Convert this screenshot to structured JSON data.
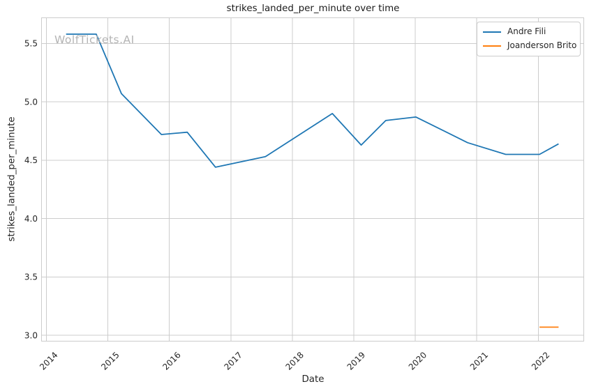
{
  "figure": {
    "watermark": "WolfTickets.AI"
  },
  "colors": {
    "grid": "#cccccc",
    "spine": "#cccccc",
    "text": "#262626",
    "watermark": "#b4b4b4",
    "background": "#ffffff"
  },
  "chart_data": {
    "type": "line",
    "title": "strikes_landed_per_minute over time",
    "xlabel": "Date",
    "ylabel": "strikes_landed_per_minute",
    "xlim": [
      2013.92,
      2022.74
    ],
    "ylim": [
      2.95,
      5.72
    ],
    "xticks": [
      2014,
      2015,
      2016,
      2017,
      2018,
      2019,
      2020,
      2021,
      2022
    ],
    "yticks": [
      3.0,
      3.5,
      4.0,
      4.5,
      5.0,
      5.5
    ],
    "grid": true,
    "legend_position": "upper right",
    "series": [
      {
        "name": "Andre Fili",
        "color": "#1f77b4",
        "x": [
          2014.32,
          2014.81,
          2015.22,
          2015.87,
          2016.29,
          2016.75,
          2017.56,
          2018.65,
          2019.12,
          2019.52,
          2020.01,
          2020.85,
          2021.47,
          2022.02,
          2022.33
        ],
        "y": [
          5.58,
          5.58,
          5.07,
          4.72,
          4.74,
          4.44,
          4.53,
          4.9,
          4.63,
          4.84,
          4.87,
          4.65,
          4.55,
          4.55,
          4.64
        ]
      },
      {
        "name": "Joanderson Brito",
        "color": "#ff7f0e",
        "x": [
          2022.02,
          2022.33
        ],
        "y": [
          3.07,
          3.07
        ]
      }
    ]
  }
}
